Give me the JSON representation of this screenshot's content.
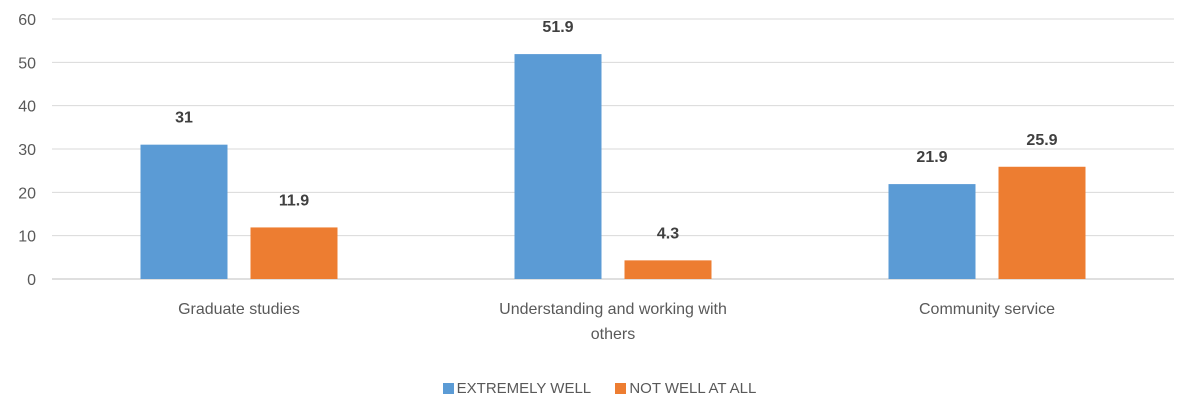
{
  "chart_data": {
    "type": "bar",
    "categories": [
      "Graduate studies",
      "Understanding and working with others",
      "Community service"
    ],
    "category_lines": [
      [
        "Graduate studies"
      ],
      [
        "Understanding and working with",
        "others"
      ],
      [
        "Community service"
      ]
    ],
    "series": [
      {
        "name": "EXTREMELY WELL",
        "color": "#5B9BD5",
        "values": [
          31,
          51.9,
          21.9
        ],
        "labels": [
          "31",
          "51.9",
          "21.9"
        ]
      },
      {
        "name": "NOT WELL AT ALL",
        "color": "#ED7D31",
        "values": [
          11.9,
          4.3,
          25.9
        ],
        "labels": [
          "11.9",
          "4.3",
          "25.9"
        ]
      }
    ],
    "ylim": [
      0,
      60
    ],
    "yticks": [
      0,
      10,
      20,
      30,
      40,
      50,
      60
    ],
    "grid": true,
    "legend_position": "bottom",
    "title": "",
    "xlabel": "",
    "ylabel": ""
  }
}
